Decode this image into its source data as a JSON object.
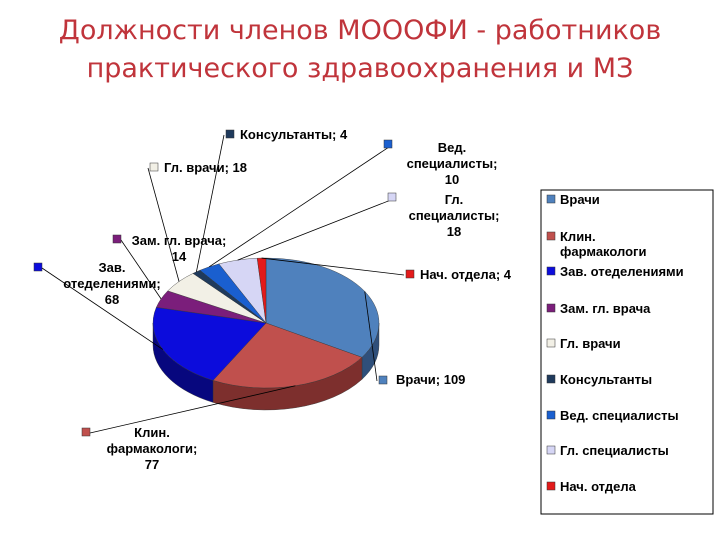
{
  "title_line1": "Должности членов МОООФИ - работников",
  "title_line2": "практического здравоохранения и МЗ",
  "chart_data": {
    "type": "pie",
    "title": "Должности членов МОООФИ - работников практического здравоохранения и МЗ",
    "label_separator": "; ",
    "slices": [
      {
        "name": "Врачи",
        "value": 109,
        "color": "#4f81bd",
        "side": "#2f4f7a"
      },
      {
        "name": "Клин. фармакологи",
        "value": 77,
        "color": "#c0504d",
        "side": "#7d2f2d"
      },
      {
        "name": "Зав. отеделениями",
        "value": 68,
        "color": "#0c0cdc",
        "side": "#07077e"
      },
      {
        "name": "Зам. гл. врача",
        "value": 14,
        "color": "#7b1e7b",
        "side": "#4a104a"
      },
      {
        "name": "Гл. врачи",
        "value": 18,
        "color": "#f2f0e6",
        "side": "#aeac9f"
      },
      {
        "name": "Консультанты",
        "value": 4,
        "color": "#1f3a5c",
        "side": "#10213a"
      },
      {
        "name": "Вед. специалисты",
        "value": 10,
        "color": "#1a5fcf",
        "side": "#103a80"
      },
      {
        "name": "Гл. специалисты",
        "value": 18,
        "color": "#d6d6f5",
        "side": "#8e8eb3"
      },
      {
        "name": "Нач. отдела",
        "value": 4,
        "color": "#e31a1a",
        "side": "#8f1010"
      }
    ],
    "legend_position": "right",
    "legend": [
      "Врачи",
      "Клин. фармакологи",
      "Зав. отеделениями",
      "Зам. гл. врача",
      "Гл. врачи",
      "Консультанты",
      "Вед. специалисты",
      "Гл. специалисты",
      "Нач. отдела"
    ]
  }
}
